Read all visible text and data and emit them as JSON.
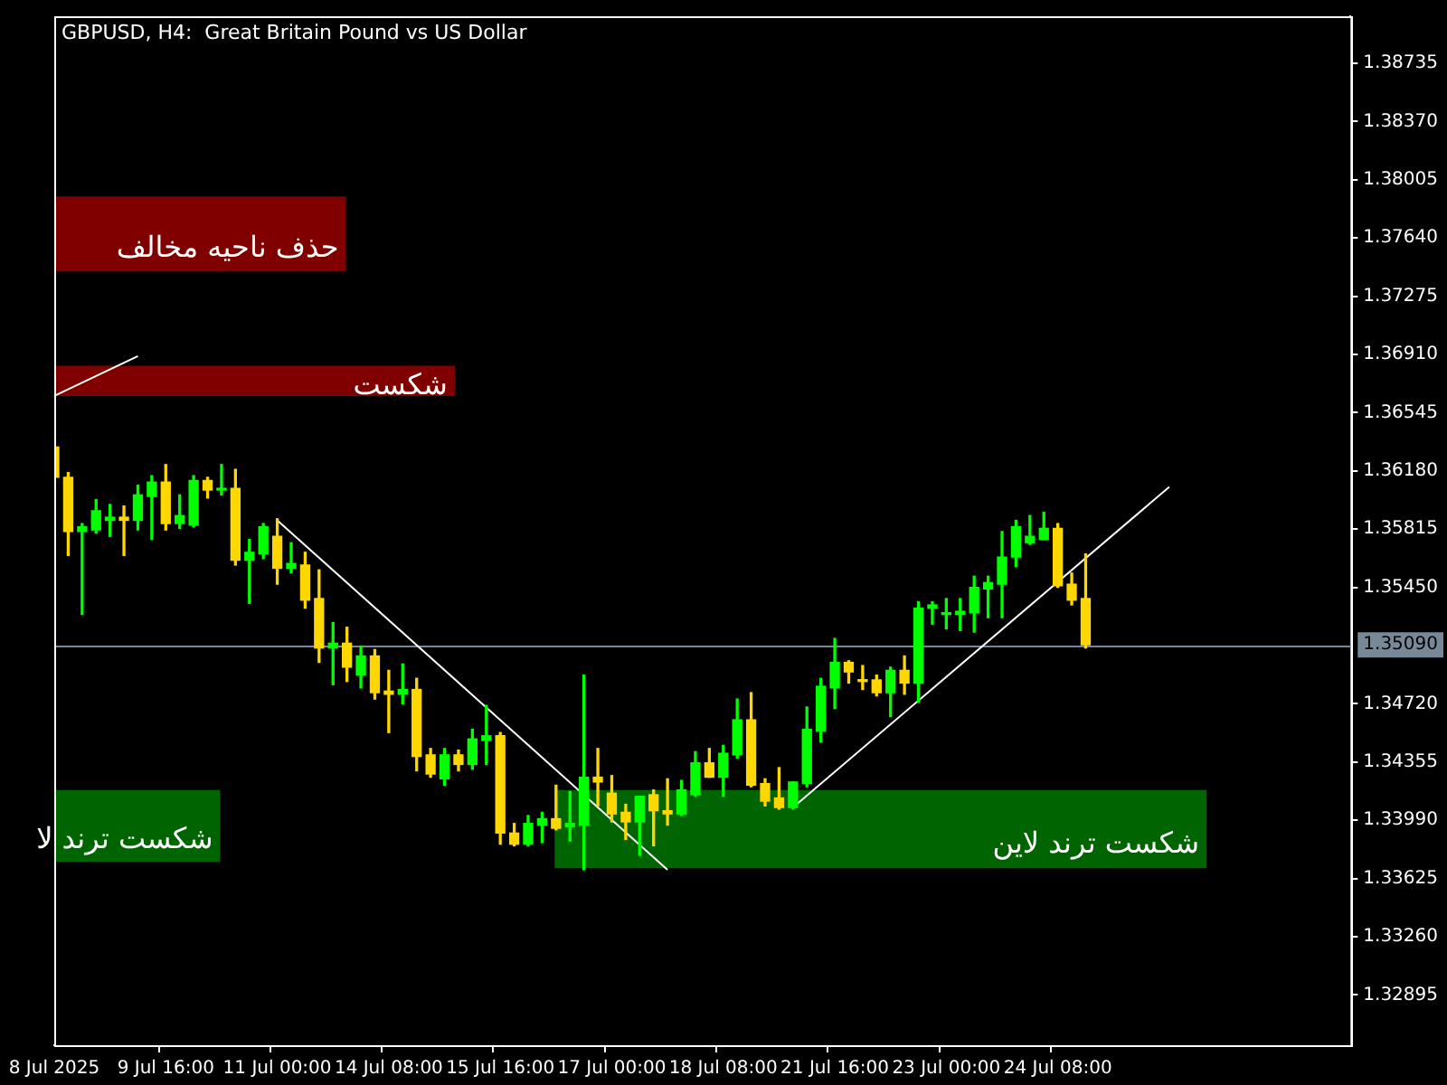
{
  "chart_data": {
    "type": "candlestick",
    "title": "GBPUSD, H4:  Great Britain Pound vs US Dollar",
    "categories": [
      "8 Jul 2025",
      null,
      null,
      null,
      null,
      null,
      null,
      null,
      "9 Jul 16:00",
      null,
      null,
      null,
      null,
      null,
      null,
      null,
      "11 Jul 00:00",
      null,
      null,
      null,
      null,
      null,
      null,
      null,
      "14 Jul 08:00",
      null,
      null,
      null,
      null,
      null,
      null,
      null,
      "15 Jul 16:00",
      null,
      null,
      null,
      null,
      null,
      null,
      null,
      "17 Jul 00:00",
      null,
      null,
      null,
      null,
      null,
      null,
      null,
      "18 Jul 08:00",
      null,
      null,
      null,
      null,
      null,
      null,
      null,
      "21 Jul 16:00",
      null,
      null,
      null,
      null,
      null,
      null,
      null,
      "23 Jul 00:00",
      null,
      null,
      null,
      null,
      null,
      null,
      null,
      "24 Jul 08:00",
      null,
      null,
      null,
      null,
      null,
      null,
      null,
      null,
      null,
      null,
      null,
      null,
      null,
      null,
      null,
      null,
      null,
      null,
      null,
      null,
      null
    ],
    "ohlc": [
      [
        1.3633,
        1.3634,
        1.3613,
        1.3614
      ],
      [
        1.3614,
        1.3617,
        1.3565,
        1.358
      ],
      [
        1.358,
        1.3585,
        1.3528,
        1.3583
      ],
      [
        1.3581,
        1.36,
        1.3579,
        1.3593
      ],
      [
        1.3587,
        1.3597,
        1.3577,
        1.3589
      ],
      [
        1.3589,
        1.3596,
        1.3565,
        1.3587
      ],
      [
        1.3587,
        1.3609,
        1.3581,
        1.3603
      ],
      [
        1.3602,
        1.3615,
        1.3575,
        1.3611
      ],
      [
        1.3611,
        1.3622,
        1.3581,
        1.3585
      ],
      [
        1.3585,
        1.3603,
        1.3582,
        1.359
      ],
      [
        1.3584,
        1.3615,
        1.3583,
        1.3612
      ],
      [
        1.3612,
        1.3614,
        1.3601,
        1.3606
      ],
      [
        1.3606,
        1.3622,
        1.3603,
        1.3607
      ],
      [
        1.3607,
        1.3619,
        1.3559,
        1.3562
      ],
      [
        1.3562,
        1.3575,
        1.3535,
        1.3567
      ],
      [
        1.3566,
        1.3585,
        1.3563,
        1.3583
      ],
      [
        1.3577,
        1.3588,
        1.3547,
        1.3557
      ],
      [
        1.3557,
        1.3573,
        1.3554,
        1.356
      ],
      [
        1.3559,
        1.3567,
        1.3532,
        1.3537
      ],
      [
        1.3538,
        1.3556,
        1.3498,
        1.3507
      ],
      [
        1.3507,
        1.3523,
        1.3484,
        1.351
      ],
      [
        1.351,
        1.352,
        1.3486,
        1.3495
      ],
      [
        1.349,
        1.3508,
        1.3482,
        1.3502
      ],
      [
        1.3502,
        1.3506,
        1.3475,
        1.3479
      ],
      [
        1.348,
        1.3493,
        1.3454,
        1.3478
      ],
      [
        1.3478,
        1.3497,
        1.3472,
        1.3481
      ],
      [
        1.3481,
        1.3488,
        1.343,
        1.3439
      ],
      [
        1.344,
        1.3444,
        1.3426,
        1.3428
      ],
      [
        1.3425,
        1.3444,
        1.3421,
        1.344
      ],
      [
        1.344,
        1.3443,
        1.343,
        1.3434
      ],
      [
        1.3434,
        1.3456,
        1.3431,
        1.345
      ],
      [
        1.3449,
        1.3471,
        1.3434,
        1.3452
      ],
      [
        1.3452,
        1.3454,
        1.3384,
        1.3391
      ],
      [
        1.3391,
        1.3397,
        1.3383,
        1.3384
      ],
      [
        1.3384,
        1.3402,
        1.3383,
        1.3397
      ],
      [
        1.3396,
        1.3404,
        1.3385,
        1.34
      ],
      [
        1.34,
        1.3421,
        1.3393,
        1.3394
      ],
      [
        1.3395,
        1.3417,
        1.3386,
        1.3397
      ],
      [
        1.3396,
        1.349,
        1.3368,
        1.3426
      ],
      [
        1.3426,
        1.3444,
        1.3408,
        1.3423
      ],
      [
        1.3416,
        1.3427,
        1.3398,
        1.3403
      ],
      [
        1.3404,
        1.3409,
        1.3387,
        1.3398
      ],
      [
        1.3398,
        1.3414,
        1.3377,
        1.3414
      ],
      [
        1.3415,
        1.3418,
        1.3383,
        1.3405
      ],
      [
        1.3405,
        1.3425,
        1.3396,
        1.3403
      ],
      [
        1.3403,
        1.3424,
        1.3402,
        1.3418
      ],
      [
        1.3415,
        1.3442,
        1.3414,
        1.3435
      ],
      [
        1.3435,
        1.3444,
        1.3426,
        1.3426
      ],
      [
        1.3426,
        1.3446,
        1.3414,
        1.3441
      ],
      [
        1.344,
        1.3475,
        1.3438,
        1.3462
      ],
      [
        1.3462,
        1.3479,
        1.342,
        1.3421
      ],
      [
        1.3422,
        1.3425,
        1.3408,
        1.3411
      ],
      [
        1.3413,
        1.3432,
        1.3406,
        1.3407
      ],
      [
        1.3407,
        1.3423,
        1.3406,
        1.3423
      ],
      [
        1.3422,
        1.347,
        1.342,
        1.3456
      ],
      [
        1.3455,
        1.3488,
        1.3448,
        1.3483
      ],
      [
        1.3482,
        1.3513,
        1.3469,
        1.3498
      ],
      [
        1.3498,
        1.3499,
        1.3485,
        1.3492
      ],
      [
        1.3487,
        1.3496,
        1.3481,
        1.3486
      ],
      [
        1.3487,
        1.349,
        1.3477,
        1.3479
      ],
      [
        1.3479,
        1.3495,
        1.3464,
        1.3493
      ],
      [
        1.3493,
        1.3502,
        1.3478,
        1.3485
      ],
      [
        1.3485,
        1.3536,
        1.3473,
        1.3532
      ],
      [
        1.3532,
        1.3536,
        1.3522,
        1.3534
      ],
      [
        1.3528,
        1.3538,
        1.3519,
        1.3529
      ],
      [
        1.3528,
        1.3538,
        1.3518,
        1.353
      ],
      [
        1.3529,
        1.3552,
        1.3517,
        1.3545
      ],
      [
        1.3544,
        1.3552,
        1.3526,
        1.3548
      ],
      [
        1.3547,
        1.358,
        1.3526,
        1.3564
      ],
      [
        1.3564,
        1.3587,
        1.3558,
        1.3583
      ],
      [
        1.3573,
        1.359,
        1.3572,
        1.3577
      ],
      [
        1.3575,
        1.3592,
        1.3575,
        1.3582
      ],
      [
        1.3582,
        1.3585,
        1.3545,
        1.3546
      ],
      [
        1.3547,
        1.3554,
        1.3534,
        1.3537
      ],
      [
        1.3538,
        1.3566,
        1.3507,
        1.3509
      ],
      null,
      null,
      null,
      null,
      null,
      null,
      null,
      null,
      null,
      null,
      null,
      null,
      null,
      null,
      null,
      null,
      null,
      null,
      null
    ],
    "colors": [
      "#ffd700",
      "#ffd700",
      "#00ff00",
      "#00ff00",
      "#00ff00",
      "#ffd700",
      "#00ff00",
      "#00ff00",
      "#ffd700",
      "#00ff00",
      "#00ff00",
      "#ffd700",
      "#00ff00",
      "#ffd700",
      "#00ff00",
      "#00ff00",
      "#ffd700",
      "#00ff00",
      "#ffd700",
      "#ffd700",
      "#00ff00",
      "#ffd700",
      "#00ff00",
      "#ffd700",
      "#ffd700",
      "#00ff00",
      "#ffd700",
      "#ffd700",
      "#00ff00",
      "#ffd700",
      "#00ff00",
      "#00ff00",
      "#ffd700",
      "#ffd700",
      "#00ff00",
      "#00ff00",
      "#ffd700",
      "#00ff00",
      "#00ff00",
      "#ffd700",
      "#ffd700",
      "#ffd700",
      "#00ff00",
      "#ffd700",
      "#ffd700",
      "#00ff00",
      "#00ff00",
      "#ffd700",
      "#00ff00",
      "#00ff00",
      "#ffd700",
      "#ffd700",
      "#ffd700",
      "#00ff00",
      "#00ff00",
      "#00ff00",
      "#00ff00",
      "#ffd700",
      "#ffd700",
      "#ffd700",
      "#00ff00",
      "#ffd700",
      "#00ff00",
      "#00ff00",
      "#00ff00",
      "#00ff00",
      "#00ff00",
      "#00ff00",
      "#00ff00",
      "#00ff00",
      "#00ff00",
      "#00ff00",
      "#ffd700",
      "#ffd700",
      "#ffd700",
      null,
      null,
      null,
      null,
      null,
      null,
      null,
      null,
      null,
      null,
      null,
      null,
      null,
      null,
      null,
      null,
      null,
      null,
      null
    ],
    "series": [
      {
        "type": "line",
        "color": "#ffffff",
        "values": [
          1.3665,
          null,
          null,
          null,
          null,
          null,
          1.369,
          null,
          null,
          null,
          null,
          null,
          null,
          null,
          null,
          null,
          null,
          null,
          null,
          null,
          null,
          null,
          null,
          null,
          null,
          null,
          null,
          null,
          null,
          null,
          null,
          null,
          null,
          null,
          null,
          null,
          null,
          null,
          null,
          null,
          null,
          null,
          null,
          null,
          null,
          null,
          null,
          null,
          null,
          null,
          null,
          null,
          null,
          null,
          null,
          null,
          null,
          null,
          null,
          null,
          null,
          null,
          null,
          null,
          null,
          null,
          null,
          null,
          null,
          null,
          null,
          null,
          null,
          null,
          null,
          null,
          null,
          null,
          null,
          null,
          null,
          null,
          null,
          null,
          null,
          null,
          null,
          null,
          null,
          null,
          null,
          null,
          null,
          null
        ]
      },
      {
        "type": "line",
        "color": "#ffffff",
        "values": [
          null,
          null,
          null,
          null,
          null,
          null,
          null,
          null,
          null,
          null,
          null,
          null,
          null,
          null,
          null,
          null,
          1.3587,
          null,
          null,
          null,
          null,
          null,
          null,
          null,
          null,
          null,
          null,
          null,
          null,
          null,
          null,
          null,
          null,
          null,
          null,
          null,
          null,
          null,
          null,
          null,
          null,
          null,
          null,
          null,
          1.3368,
          null,
          null,
          null,
          null,
          null,
          null,
          null,
          null,
          null,
          null,
          null,
          null,
          null,
          null,
          null,
          null,
          null,
          null,
          null,
          null,
          null,
          null,
          null,
          null,
          null,
          null,
          null,
          null,
          null,
          null,
          null,
          null,
          null,
          null,
          null,
          null,
          null,
          null,
          null,
          null,
          null,
          null,
          null,
          null,
          null,
          null,
          null,
          null,
          null
        ]
      },
      {
        "type": "line",
        "color": "#ffffff",
        "values": [
          null,
          null,
          null,
          null,
          null,
          null,
          null,
          null,
          null,
          null,
          null,
          null,
          null,
          null,
          null,
          null,
          null,
          null,
          null,
          null,
          null,
          null,
          null,
          null,
          null,
          null,
          null,
          null,
          null,
          null,
          null,
          null,
          null,
          null,
          null,
          null,
          null,
          null,
          null,
          null,
          null,
          null,
          null,
          null,
          null,
          null,
          null,
          null,
          null,
          null,
          null,
          null,
          null,
          1.3407,
          null,
          null,
          null,
          null,
          null,
          null,
          null,
          null,
          null,
          null,
          null,
          null,
          null,
          null,
          null,
          null,
          null,
          null,
          null,
          null,
          null,
          null,
          null,
          null,
          null,
          null,
          1.3608,
          null,
          null,
          null,
          null,
          null,
          null,
          null,
          null,
          null,
          null,
          null,
          null,
          null
        ]
      }
    ],
    "ylim": [
      1.3258,
      1.3903
    ],
    "yticks": [
      1.38735,
      {
        "value": 1.3837,
        "label": "1.38370"
      },
      1.38005,
      {
        "value": 1.3764,
        "label": "1.37640"
      },
      1.37275,
      {
        "value": 1.3691,
        "label": "1.36910"
      },
      1.36545,
      {
        "value": 1.3618,
        "label": "1.36180"
      },
      1.35815,
      {
        "value": 1.3545,
        "label": "1.35450"
      },
      {
        "value": 1.3472,
        "label": "1.34720"
      },
      1.34355,
      {
        "value": 1.3399,
        "label": "1.33990"
      },
      1.33625,
      {
        "value": 1.3326,
        "label": "1.33260"
      },
      1.32895
    ],
    "ref_lines": [
      {
        "axis": "y",
        "value": 1.3509,
        "label": "1.35090",
        "color": "#778899"
      }
    ],
    "bands": [
      {
        "axis": "y",
        "from": 1.3743,
        "to": 1.379,
        "label": "حذف ناحیه مخالف",
        "color": "#800000"
      },
      {
        "axis": "y",
        "from": 1.3665,
        "to": 1.3684,
        "label": "شکست",
        "color": "#800000"
      },
      {
        "axis": "y",
        "from": 1.3373,
        "to": 1.3418,
        "label": "شکست ترند لا",
        "color": "#006400"
      },
      {
        "axis": "y",
        "from": 1.3369,
        "to": 1.3418,
        "label": "شکست ترند لاین",
        "color": "#006400"
      }
    ],
    "legend": false
  }
}
